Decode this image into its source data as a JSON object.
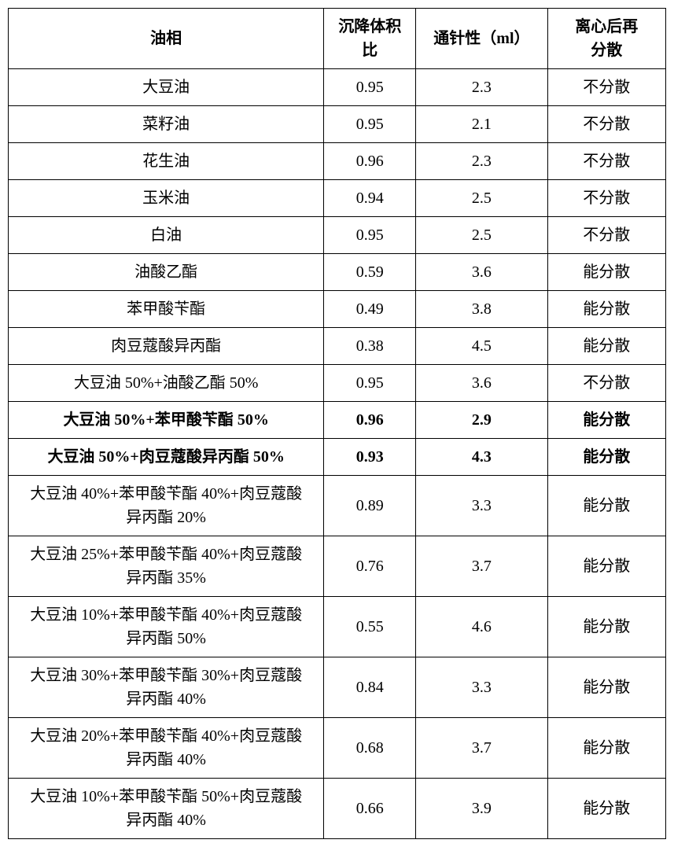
{
  "table": {
    "headers": {
      "oil_phase": "油相",
      "sedimentation_ratio_line1": "沉降体积",
      "sedimentation_ratio_line2": "比",
      "needle_ml": "通针性（ml）",
      "redispersion_line1": "离心后再",
      "redispersion_line2": "分散"
    },
    "rows": [
      {
        "oil": "大豆油",
        "sed": "0.95",
        "needle": "2.3",
        "redisp": "不分散",
        "bold": false,
        "multiline": false
      },
      {
        "oil": "菜籽油",
        "sed": "0.95",
        "needle": "2.1",
        "redisp": "不分散",
        "bold": false,
        "multiline": false
      },
      {
        "oil": "花生油",
        "sed": "0.96",
        "needle": "2.3",
        "redisp": "不分散",
        "bold": false,
        "multiline": false
      },
      {
        "oil": "玉米油",
        "sed": "0.94",
        "needle": "2.5",
        "redisp": "不分散",
        "bold": false,
        "multiline": false
      },
      {
        "oil": "白油",
        "sed": "0.95",
        "needle": "2.5",
        "redisp": "不分散",
        "bold": false,
        "multiline": false
      },
      {
        "oil": "油酸乙酯",
        "sed": "0.59",
        "needle": "3.6",
        "redisp": "能分散",
        "bold": false,
        "multiline": false
      },
      {
        "oil": "苯甲酸苄酯",
        "sed": "0.49",
        "needle": "3.8",
        "redisp": "能分散",
        "bold": false,
        "multiline": false
      },
      {
        "oil": "肉豆蔻酸异丙酯",
        "sed": "0.38",
        "needle": "4.5",
        "redisp": "能分散",
        "bold": false,
        "multiline": false
      },
      {
        "oil": "大豆油 50%+油酸乙酯 50%",
        "sed": "0.95",
        "needle": "3.6",
        "redisp": "不分散",
        "bold": false,
        "multiline": false
      },
      {
        "oil": "大豆油 50%+苯甲酸苄酯 50%",
        "sed": "0.96",
        "needle": "2.9",
        "redisp": "能分散",
        "bold": true,
        "multiline": false
      },
      {
        "oil": "大豆油 50%+肉豆蔻酸异丙酯 50%",
        "sed": "0.93",
        "needle": "4.3",
        "redisp": "能分散",
        "bold": true,
        "multiline": false
      },
      {
        "oil_l1": "大豆油 40%+苯甲酸苄酯 40%+肉豆蔻酸",
        "oil_l2": "异丙酯 20%",
        "sed": "0.89",
        "needle": "3.3",
        "redisp": "能分散",
        "bold": false,
        "multiline": true
      },
      {
        "oil_l1": "大豆油 25%+苯甲酸苄酯 40%+肉豆蔻酸",
        "oil_l2": "异丙酯 35%",
        "sed": "0.76",
        "needle": "3.7",
        "redisp": "能分散",
        "bold": false,
        "multiline": true
      },
      {
        "oil_l1": "大豆油 10%+苯甲酸苄酯 40%+肉豆蔻酸",
        "oil_l2": "异丙酯 50%",
        "sed": "0.55",
        "needle": "4.6",
        "redisp": "能分散",
        "bold": false,
        "multiline": true
      },
      {
        "oil_l1": "大豆油 30%+苯甲酸苄酯 30%+肉豆蔻酸",
        "oil_l2": "异丙酯 40%",
        "sed": "0.84",
        "needle": "3.3",
        "redisp": "能分散",
        "bold": false,
        "multiline": true
      },
      {
        "oil_l1": "大豆油 20%+苯甲酸苄酯 40%+肉豆蔻酸",
        "oil_l2": "异丙酯 40%",
        "sed": "0.68",
        "needle": "3.7",
        "redisp": "能分散",
        "bold": false,
        "multiline": true
      },
      {
        "oil_l1": "大豆油 10%+苯甲酸苄酯 50%+肉豆蔻酸",
        "oil_l2": "异丙酯 40%",
        "sed": "0.66",
        "needle": "3.9",
        "redisp": "能分散",
        "bold": false,
        "multiline": true
      }
    ]
  }
}
